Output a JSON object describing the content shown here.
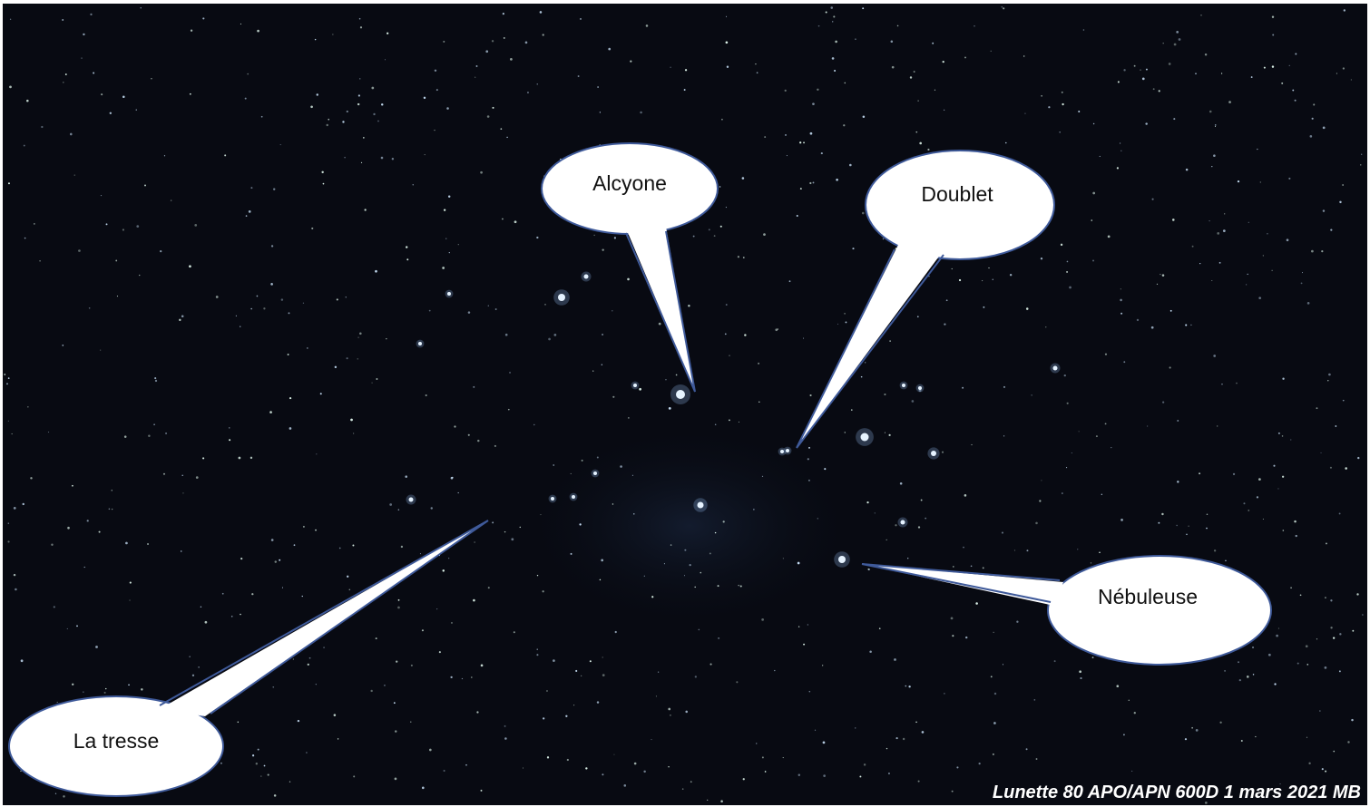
{
  "callouts": [
    {
      "label": "Alcyone"
    },
    {
      "label": "Doublet"
    },
    {
      "label": "Nébuleuse"
    },
    {
      "label": "La tresse"
    }
  ],
  "caption": "Lunette 80 APO/APN 600D 1 mars 2021 MB"
}
